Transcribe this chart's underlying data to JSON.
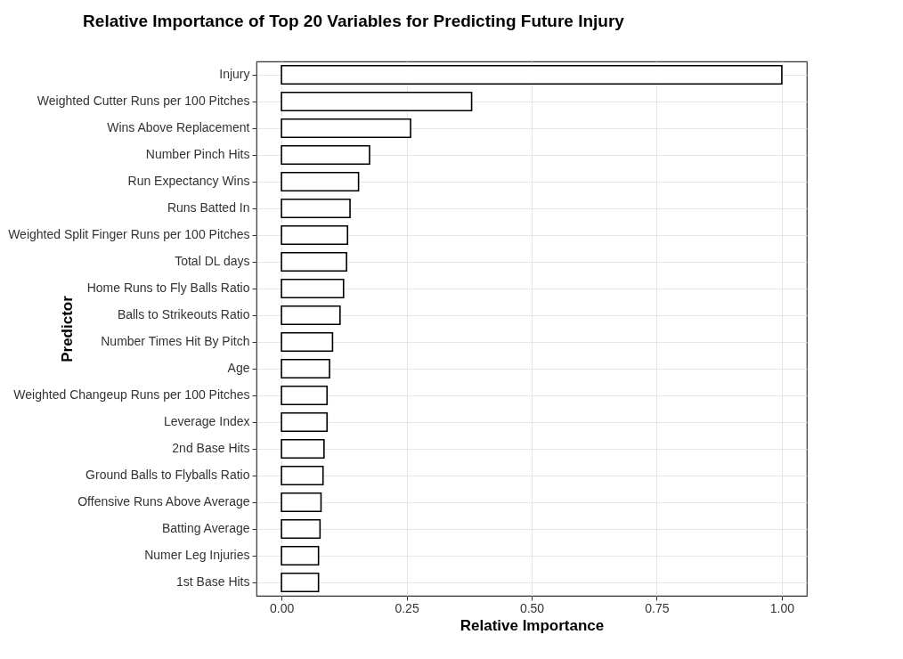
{
  "chart_data": {
    "type": "bar",
    "orientation": "horizontal",
    "title": "Relative Importance of Top 20 Variables for Predicting Future Injury",
    "xlabel": "Relative Importance",
    "ylabel": "Predictor",
    "categories": [
      "Injury",
      "Weighted Cutter Runs per 100 Pitches",
      "Wins Above Replacement",
      "Number Pinch Hits",
      "Run Expectancy Wins",
      "Runs Batted In",
      "Weighted Split Finger Runs per 100 Pitches",
      "Total DL days",
      "Home Runs to Fly Balls Ratio",
      "Balls to Strikeouts Ratio",
      "Number Times Hit By Pitch",
      "Age",
      "Weighted Changeup Runs per 100 Pitches",
      "Leverage Index",
      "2nd Base Hits",
      "Ground Balls to Flyballs Ratio",
      "Offensive Runs Above Average",
      "Batting Average",
      "Numer Leg Injuries",
      "1st Base Hits"
    ],
    "values": [
      1.0,
      0.38,
      0.258,
      0.176,
      0.154,
      0.137,
      0.132,
      0.13,
      0.124,
      0.117,
      0.102,
      0.096,
      0.091,
      0.091,
      0.085,
      0.083,
      0.079,
      0.077,
      0.074,
      0.074
    ],
    "color": "#ffffff",
    "xlim": [
      -0.05,
      1.05
    ],
    "xticks": [
      {
        "value": 0,
        "label": "0.00"
      },
      {
        "value": 0.25,
        "label": "0.25"
      },
      {
        "value": 0.5,
        "label": "0.50"
      },
      {
        "value": 0.75,
        "label": "0.75"
      },
      {
        "value": 1,
        "label": "1.00"
      }
    ],
    "grid": true
  }
}
